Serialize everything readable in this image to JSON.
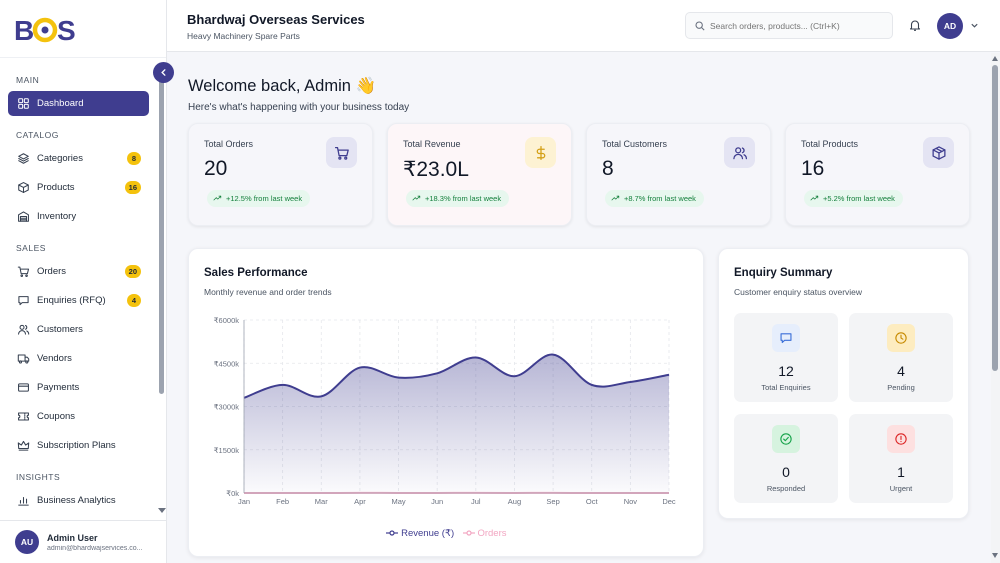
{
  "brand": {
    "logo_text": "BOS",
    "accent": "#3f3d8f",
    "badge_color": "#f4c20d"
  },
  "sidebar": {
    "sections": [
      {
        "title": "MAIN",
        "items": [
          {
            "label": "Dashboard",
            "icon": "grid-icon",
            "active": true
          }
        ]
      },
      {
        "title": "CATALOG",
        "items": [
          {
            "label": "Categories",
            "icon": "layers-icon",
            "badge": "8"
          },
          {
            "label": "Products",
            "icon": "box-icon",
            "badge": "16"
          },
          {
            "label": "Inventory",
            "icon": "warehouse-icon"
          }
        ]
      },
      {
        "title": "SALES",
        "items": [
          {
            "label": "Orders",
            "icon": "cart-icon",
            "badge": "20"
          },
          {
            "label": "Enquiries (RFQ)",
            "icon": "message-icon",
            "badge": "4"
          },
          {
            "label": "Customers",
            "icon": "users-icon"
          },
          {
            "label": "Vendors",
            "icon": "truck-icon"
          },
          {
            "label": "Payments",
            "icon": "credit-card-icon"
          },
          {
            "label": "Coupons",
            "icon": "ticket-icon"
          },
          {
            "label": "Subscription Plans",
            "icon": "crown-icon"
          }
        ]
      },
      {
        "title": "INSIGHTS",
        "items": [
          {
            "label": "Business Analytics",
            "icon": "analytics-icon"
          }
        ]
      }
    ],
    "user": {
      "initials": "AU",
      "name": "Admin User",
      "email": "admin@bhardwajservices.co..."
    }
  },
  "header": {
    "company_name": "Bhardwaj Overseas Services",
    "company_sub": "Heavy Machinery Spare Parts",
    "search_placeholder": "Search orders, products... (Ctrl+K)",
    "avatar_initials": "AD"
  },
  "main": {
    "welcome": "Welcome back, Admin 👋",
    "welcome_sub": "Here's what's happening with your business today",
    "stats": [
      {
        "label": "Total Orders",
        "value": "20",
        "trend": "+12.5% from last week",
        "icon": "cart-icon",
        "icon_bg": "#e4e4f3",
        "icon_color": "#3f3d8f"
      },
      {
        "label": "Total Revenue",
        "value": "₹23.0L",
        "trend": "+18.3% from last week",
        "icon": "dollar-icon",
        "icon_bg": "#fdf2d3",
        "icon_color": "#d4a017"
      },
      {
        "label": "Total Customers",
        "value": "8",
        "trend": "+8.7% from last week",
        "icon": "users-icon",
        "icon_bg": "#e4e4f3",
        "icon_color": "#3f3d8f"
      },
      {
        "label": "Total Products",
        "value": "16",
        "trend": "+5.2% from last week",
        "icon": "package-icon",
        "icon_bg": "#e4e4f3",
        "icon_color": "#3f3d8f"
      }
    ],
    "sales": {
      "title": "Sales Performance",
      "subtitle": "Monthly revenue and order trends"
    },
    "enquiry": {
      "title": "Enquiry Summary",
      "subtitle": "Customer enquiry status overview",
      "tiles": [
        {
          "value": "12",
          "label": "Total Enquiries",
          "icon": "message-icon",
          "bg": "#e6eefc",
          "color": "#3b6fd8"
        },
        {
          "value": "4",
          "label": "Pending",
          "icon": "clock-icon",
          "bg": "#fdecc0",
          "color": "#c78a00"
        },
        {
          "value": "0",
          "label": "Responded",
          "icon": "check-circle-icon",
          "bg": "#d6f3df",
          "color": "#16a34a"
        },
        {
          "value": "1",
          "label": "Urgent",
          "icon": "alert-icon",
          "bg": "#fde0e0",
          "color": "#dc2626"
        }
      ]
    }
  },
  "chart_data": {
    "type": "area",
    "categories": [
      "Jan",
      "Feb",
      "Mar",
      "Apr",
      "May",
      "Jun",
      "Jul",
      "Aug",
      "Sep",
      "Oct",
      "Nov",
      "Dec"
    ],
    "series": [
      {
        "name": "Revenue (₹)",
        "values": [
          3300,
          3750,
          3350,
          4350,
          4000,
          4150,
          4700,
          4050,
          4800,
          3750,
          3850,
          4100
        ],
        "color": "#3f3d8f"
      },
      {
        "name": "Orders",
        "values": [
          1,
          2,
          1,
          3,
          2,
          2,
          3,
          2,
          3,
          1,
          2,
          2
        ],
        "color": "#f2a6c2"
      }
    ],
    "ylim": [
      0,
      6000
    ],
    "yticks": [
      "₹0k",
      "₹1500k",
      "₹3000k",
      "₹4500k",
      "₹6000k"
    ],
    "ytick_values": [
      0,
      1500,
      3000,
      4500,
      6000
    ],
    "grid": true,
    "legend": "bottom"
  }
}
